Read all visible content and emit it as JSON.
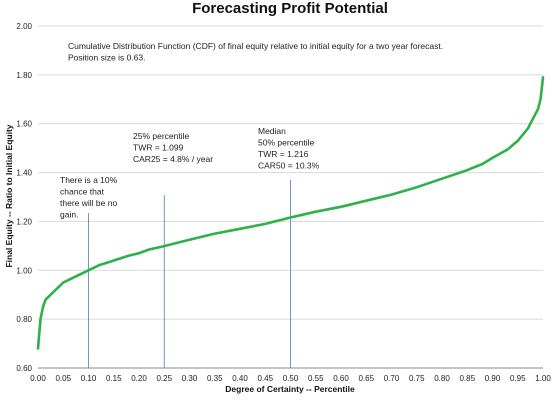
{
  "chart_data": {
    "type": "line",
    "title": "Forecasting Profit Potential",
    "xlabel": "Degree of Certainty -- Percentile",
    "ylabel": "Final Equity -- Ratio to Initial Equity",
    "xlim": [
      0.0,
      1.0
    ],
    "ylim": [
      0.6,
      2.0
    ],
    "x_ticks": [
      "0.00",
      "0.05",
      "0.10",
      "0.15",
      "0.20",
      "0.25",
      "0.30",
      "0.35",
      "0.40",
      "0.45",
      "0.50",
      "0.55",
      "0.60",
      "0.65",
      "0.70",
      "0.75",
      "0.80",
      "0.85",
      "0.90",
      "0.95",
      "1.00"
    ],
    "y_ticks": [
      "0.60",
      "0.80",
      "1.00",
      "1.20",
      "1.40",
      "1.60",
      "1.80",
      "2.00"
    ],
    "grid": "horizontal",
    "series": [
      {
        "color": "#2eb04b",
        "x": [
          0.0,
          0.005,
          0.01,
          0.015,
          0.02,
          0.03,
          0.04,
          0.05,
          0.06,
          0.08,
          0.1,
          0.12,
          0.15,
          0.18,
          0.2,
          0.22,
          0.25,
          0.28,
          0.3,
          0.35,
          0.4,
          0.45,
          0.5,
          0.55,
          0.6,
          0.65,
          0.7,
          0.75,
          0.8,
          0.85,
          0.88,
          0.9,
          0.93,
          0.95,
          0.97,
          0.98,
          0.99,
          0.995,
          1.0
        ],
        "y": [
          0.68,
          0.8,
          0.85,
          0.88,
          0.89,
          0.91,
          0.93,
          0.95,
          0.96,
          0.98,
          1.0,
          1.02,
          1.04,
          1.06,
          1.07,
          1.085,
          1.099,
          1.115,
          1.125,
          1.15,
          1.17,
          1.19,
          1.216,
          1.24,
          1.26,
          1.285,
          1.31,
          1.34,
          1.375,
          1.41,
          1.435,
          1.46,
          1.495,
          1.53,
          1.58,
          1.62,
          1.66,
          1.7,
          1.79
        ]
      }
    ],
    "markers": [
      0.1,
      0.25,
      0.5
    ],
    "annotations": [
      {
        "lines": [
          "Cumulative Distribution Function (CDF) of final equity relative to initial equity for a two year forecast.",
          "Position size is 0.63."
        ]
      },
      {
        "lines": [
          "There is a 10%",
          "chance that",
          "there will be no",
          "gain."
        ]
      },
      {
        "lines": [
          "25% percentile",
          "TWR = 1.099",
          "CAR25 = 4.8% / year"
        ]
      },
      {
        "lines": [
          "Median",
          "50% percentile",
          "TWR = 1.216",
          "CAR50 = 10.3%"
        ]
      }
    ]
  }
}
